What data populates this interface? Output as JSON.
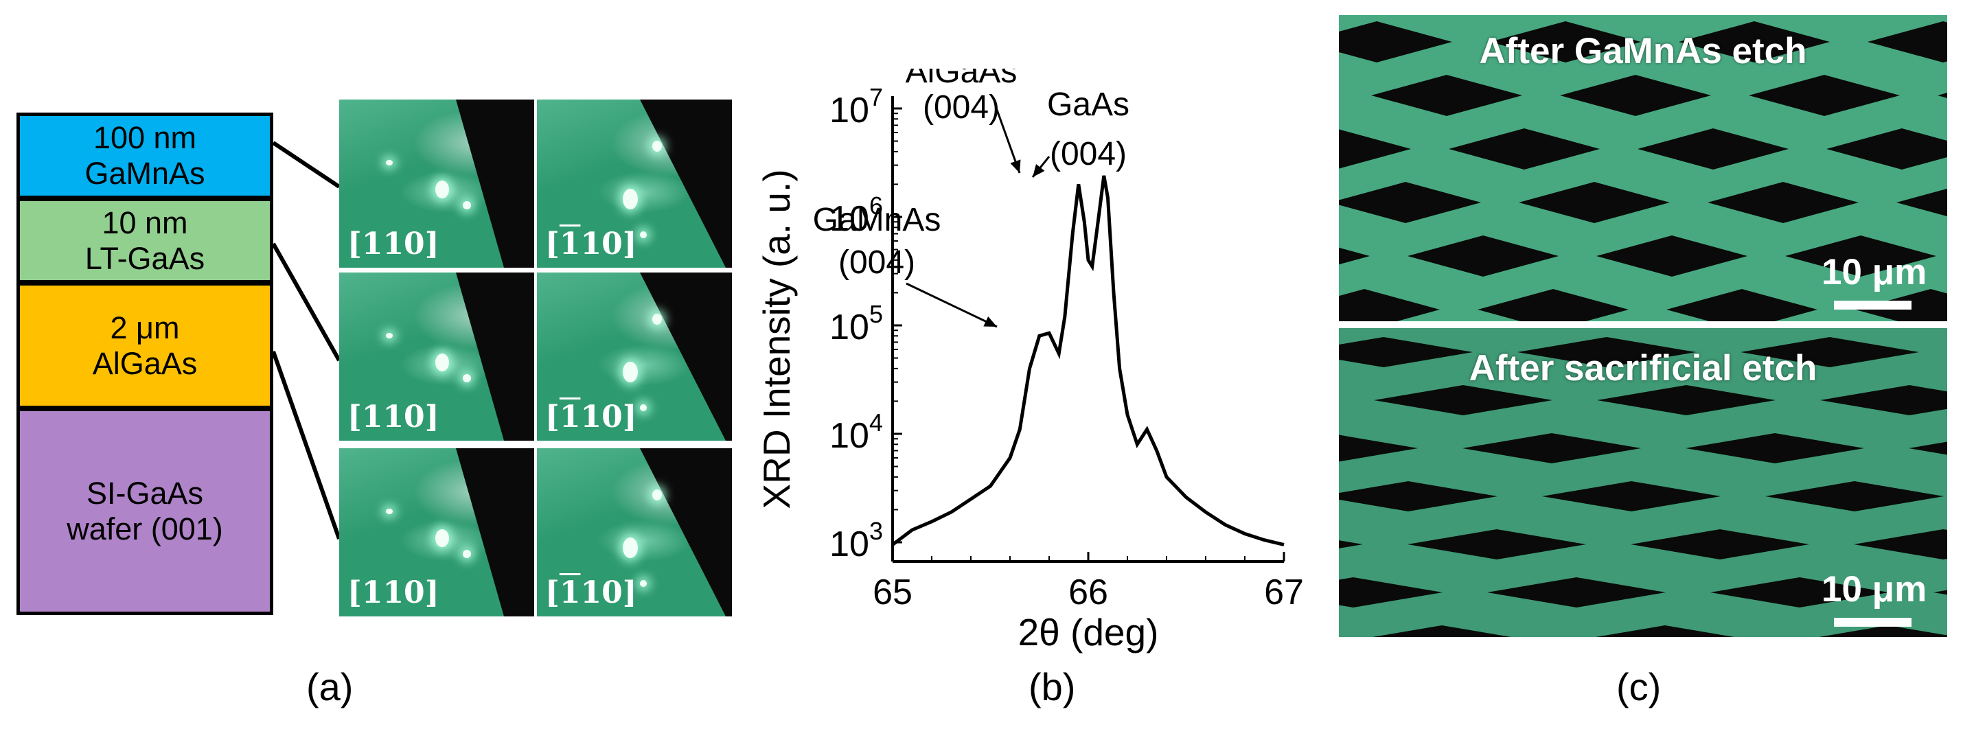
{
  "panel_a": {
    "layers": [
      {
        "line1": "100 nm",
        "line2": "GaMnAs",
        "color": "#00b0f0"
      },
      {
        "line1": "10 nm",
        "line2": "LT-GaAs",
        "color": "#92d08f"
      },
      {
        "line1": "2 μm",
        "line2": "AlGaAs",
        "color": "#ffc000"
      },
      {
        "line1": "SI-GaAs",
        "line2": "wafer (001)",
        "color": "#b084c9"
      }
    ],
    "rheed_labels": {
      "left_open": "[",
      "left_num": "110",
      "left_close": "]",
      "right_open": "[",
      "right_bar": "1",
      "right_num": "10",
      "right_close": "]"
    },
    "caption": "(a)"
  },
  "panel_b": {
    "annotations": {
      "algaas_name": "AlGaAs",
      "algaas_plane": "(004)",
      "gaas_name": "GaAs",
      "gaas_plane": "(004)",
      "gamnas_name": "GaMnAs",
      "gamnas_plane": "(004)"
    },
    "caption": "(b)"
  },
  "panel_c": {
    "top_title": "After GaMnAs etch",
    "bottom_title": "After sacrificial etch",
    "scale_label": "10 μm",
    "caption": "(c)",
    "tint_color": "#4fae86"
  },
  "chart_data": {
    "type": "line",
    "xlabel": "2θ (deg)",
    "ylabel": "XRD Intensity (a. u.)",
    "xlim": [
      65,
      67
    ],
    "ylim": [
      900,
      10000000
    ],
    "y_scale": "log",
    "x_ticks": [
      "65",
      "66",
      "67"
    ],
    "y_ticks": [
      {
        "base": "10",
        "exp": "3"
      },
      {
        "base": "10",
        "exp": "4"
      },
      {
        "base": "10",
        "exp": "5"
      },
      {
        "base": "10",
        "exp": "6"
      },
      {
        "base": "10",
        "exp": "7"
      }
    ],
    "series": [
      {
        "x": [
          65.0,
          65.1,
          65.2,
          65.3,
          65.4,
          65.5,
          65.6,
          65.65,
          65.7,
          65.75,
          65.8,
          65.85,
          65.88,
          65.92,
          65.95,
          65.98,
          66.0,
          66.02,
          66.05,
          66.08,
          66.1,
          66.13,
          66.16,
          66.2,
          66.25,
          66.3,
          66.35,
          66.4,
          66.5,
          66.6,
          66.7,
          66.8,
          66.9,
          67.0
        ],
        "y": [
          950,
          1300,
          1550,
          1900,
          2500,
          3300,
          6000,
          11000,
          40000,
          80000,
          85000,
          55000,
          120000,
          700000,
          2000000,
          900000,
          400000,
          350000,
          900000,
          2400000,
          1500000,
          200000,
          40000,
          15000,
          8000,
          11000,
          7000,
          4000,
          2600,
          1900,
          1450,
          1200,
          1050,
          950
        ]
      }
    ]
  }
}
